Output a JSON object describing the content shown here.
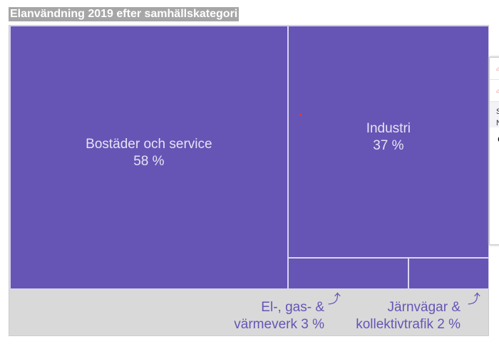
{
  "chart_data": {
    "type": "treemap",
    "title": "Elanvändning 2019 efter samhällskategori",
    "categories": [
      "Bostäder och service",
      "Industri",
      "El-, gas- & värmeverk",
      "Järnvägar & kollektivtrafik"
    ],
    "values": [
      58,
      37,
      3,
      2
    ],
    "value_labels": [
      "58 %",
      "37 %",
      "3 %",
      "2 %"
    ],
    "colors": {
      "cell": "#6655b5",
      "background": "#d9d9d9",
      "title_bg": "#a6a6a6"
    }
  },
  "popup": {
    "letters": [
      "S",
      "N"
    ]
  }
}
